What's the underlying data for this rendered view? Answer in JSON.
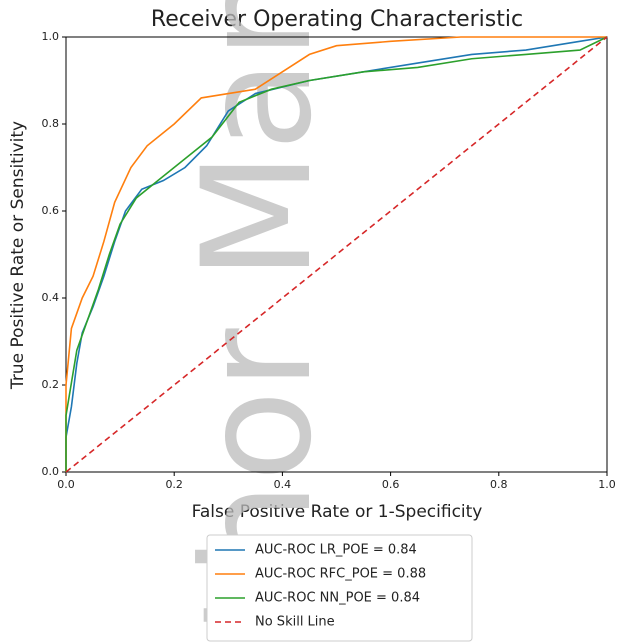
{
  "watermark": "thor Man",
  "chart_data": {
    "type": "line",
    "title": "Receiver Operating Characteristic",
    "xlabel": "False Positive Rate or 1-Specificity",
    "ylabel": "True Positive Rate or Sensitivity",
    "xlim": [
      0,
      1
    ],
    "ylim": [
      0,
      1
    ],
    "xticks": [
      {
        "value": 0,
        "label": "0.0"
      },
      {
        "value": 0.2,
        "label": "0.2"
      },
      {
        "value": 0.4,
        "label": "0.4"
      },
      {
        "value": 0.6,
        "label": "0.6"
      },
      {
        "value": 0.8,
        "label": "0.8"
      },
      {
        "value": 1,
        "label": "1.0"
      }
    ],
    "yticks": [
      {
        "value": 0,
        "label": "0.0"
      },
      {
        "value": 0.2,
        "label": "0.2"
      },
      {
        "value": 0.4,
        "label": "0.4"
      },
      {
        "value": 0.6,
        "label": "0.6"
      },
      {
        "value": 0.8,
        "label": "0.8"
      },
      {
        "value": 1,
        "label": "1.0"
      }
    ],
    "grid": false,
    "legend": "below",
    "series": [
      {
        "name": "AUC-ROC LR_POE = 0.84",
        "color": "#1f77b4",
        "dashed": false,
        "x": [
          0,
          0,
          0.01,
          0.02,
          0.03,
          0.05,
          0.07,
          0.09,
          0.11,
          0.14,
          0.18,
          0.22,
          0.26,
          0.3,
          0.35,
          0.45,
          0.55,
          0.65,
          0.75,
          0.85,
          0.95,
          1
        ],
        "values": [
          0,
          0.08,
          0.15,
          0.25,
          0.32,
          0.38,
          0.45,
          0.53,
          0.6,
          0.65,
          0.67,
          0.7,
          0.75,
          0.83,
          0.87,
          0.9,
          0.92,
          0.94,
          0.96,
          0.97,
          0.99,
          1
        ]
      },
      {
        "name": "AUC-ROC RFC_POE = 0.88",
        "color": "#ff7f0e",
        "dashed": false,
        "x": [
          0,
          0,
          0.01,
          0.03,
          0.05,
          0.07,
          0.09,
          0.12,
          0.15,
          0.2,
          0.25,
          0.3,
          0.35,
          0.4,
          0.45,
          0.5,
          0.6,
          0.73,
          1
        ],
        "values": [
          0,
          0.2,
          0.33,
          0.4,
          0.45,
          0.53,
          0.62,
          0.7,
          0.75,
          0.8,
          0.86,
          0.87,
          0.88,
          0.92,
          0.96,
          0.98,
          0.99,
          1,
          1
        ]
      },
      {
        "name": "AUC-ROC NN_POE = 0.84",
        "color": "#2ca02c",
        "dashed": false,
        "x": [
          0,
          0,
          0.02,
          0.04,
          0.06,
          0.08,
          0.1,
          0.13,
          0.17,
          0.22,
          0.27,
          0.32,
          0.38,
          0.45,
          0.55,
          0.65,
          0.75,
          0.85,
          0.95,
          1
        ],
        "values": [
          0,
          0.13,
          0.28,
          0.35,
          0.42,
          0.5,
          0.57,
          0.63,
          0.67,
          0.72,
          0.77,
          0.85,
          0.88,
          0.9,
          0.92,
          0.93,
          0.95,
          0.96,
          0.97,
          1
        ]
      },
      {
        "name": "No Skill Line",
        "color": "#d62728",
        "dashed": true,
        "x": [
          0,
          1
        ],
        "values": [
          0,
          1
        ]
      }
    ]
  }
}
